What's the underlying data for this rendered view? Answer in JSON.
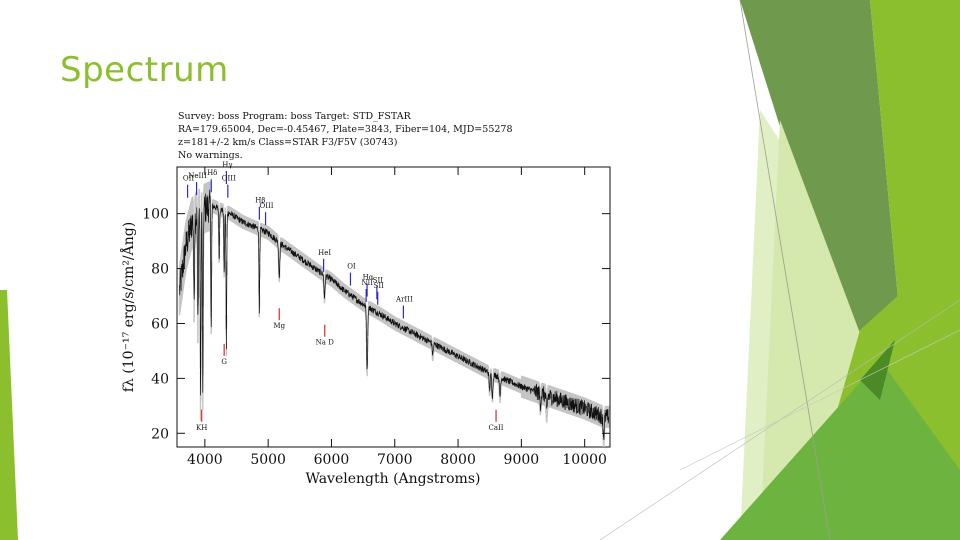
{
  "slide": {
    "title": "Spectrum"
  },
  "colors": {
    "accent": "#8cbf2e",
    "emission": "#2a2ad6",
    "absorption": "#d62a2a"
  },
  "chart_data": {
    "type": "line",
    "header": [
      "Survey: boss Program: boss Target: STD_FSTAR",
      "RA=179.65004, Dec=-0.45467, Plate=3843, Fiber=104, MJD=55278",
      "z=181+/-2 km/s Class=STAR F3/F5V (30743)",
      "No warnings."
    ],
    "xlabel": "Wavelength (Angstroms)",
    "ylabel": "fλ (10⁻¹⁷ erg/s/cm²/Ång)",
    "xlim": [
      3560,
      10400
    ],
    "ylim": [
      15,
      117
    ],
    "x_ticks": [
      4000,
      5000,
      6000,
      7000,
      8000,
      9000,
      10000
    ],
    "y_ticks": [
      20,
      40,
      60,
      80,
      100
    ],
    "grid": false,
    "continuum": {
      "x": [
        3600,
        3700,
        3800,
        3900,
        4000,
        4100,
        4200,
        4300,
        4400,
        4600,
        4800,
        5000,
        5200,
        5500,
        5800,
        6000,
        6200,
        6500,
        6800,
        7000,
        7500,
        8000,
        8500,
        9000,
        9500,
        10000,
        10300
      ],
      "y": [
        72,
        88,
        97,
        100,
        102,
        103,
        102,
        101,
        100,
        97,
        95,
        93,
        89,
        84,
        79,
        76,
        72,
        67,
        63,
        60,
        54,
        48,
        42,
        37,
        33,
        29,
        26
      ]
    },
    "absorption_features": [
      {
        "x": 3830,
        "depth": 30
      },
      {
        "x": 3890,
        "depth": 40
      },
      {
        "x": 3933,
        "depth": 68
      },
      {
        "x": 3968,
        "depth": 64
      },
      {
        "x": 4101,
        "depth": 45
      },
      {
        "x": 4226,
        "depth": 18
      },
      {
        "x": 4305,
        "depth": 22
      },
      {
        "x": 4340,
        "depth": 50
      },
      {
        "x": 4861,
        "depth": 30
      },
      {
        "x": 5175,
        "depth": 12
      },
      {
        "x": 5890,
        "depth": 8
      },
      {
        "x": 6563,
        "depth": 23
      },
      {
        "x": 7600,
        "depth": 4
      },
      {
        "x": 8498,
        "depth": 6
      },
      {
        "x": 8542,
        "depth": 8
      },
      {
        "x": 8662,
        "depth": 7
      },
      {
        "x": 9300,
        "depth": 4
      },
      {
        "x": 9400,
        "depth": 6
      },
      {
        "x": 10300,
        "depth": 7
      }
    ],
    "emission_lines": [
      {
        "label": "OII",
        "x": 3727,
        "y_label": 112
      },
      {
        "label": "NeIII",
        "x": 3869,
        "y_label": 113
      },
      {
        "label": "Hδ",
        "x": 4101,
        "y_label": 114
      },
      {
        "label": "Hγ",
        "x": 4340,
        "y_label": 117
      },
      {
        "label": "OIII",
        "x": 4363,
        "y_label": 112
      },
      {
        "label": "Hβ",
        "x": 4861,
        "y_label": 104
      },
      {
        "label": "OIII",
        "x": 4959,
        "y_label": 102
      },
      {
        "label": "HeI",
        "x": 5876,
        "y_label": 85
      },
      {
        "label": "OI",
        "x": 6300,
        "y_label": 80
      },
      {
        "label": "NII",
        "x": 6548,
        "y_label": 74
      },
      {
        "label": "Hα",
        "x": 6563,
        "y_label": 76
      },
      {
        "label": "SII",
        "x": 6717,
        "y_label": 75
      },
      {
        "label": "SII",
        "x": 6731,
        "y_label": 73
      },
      {
        "label": "ArIII",
        "x": 7136,
        "y_label": 68
      }
    ],
    "absorption_lines": [
      {
        "label": "KH",
        "x": 3950,
        "y_label": 22
      },
      {
        "label": "G",
        "x": 4305,
        "y_label": 46
      },
      {
        "label": "Mg",
        "x": 5175,
        "y_label": 59
      },
      {
        "label": "Na D",
        "x": 5894,
        "y_label": 53
      },
      {
        "label": "CaII",
        "x": 8600,
        "y_label": 22
      }
    ]
  }
}
